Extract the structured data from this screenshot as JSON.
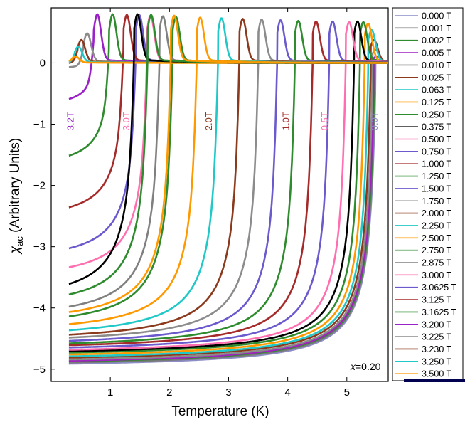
{
  "chart_data": {
    "type": "line",
    "xlabel": "Temperature (K)",
    "ylabel_main": "χ",
    "ylabel_sub": "ac",
    "ylabel_rest": " (Arbitrary Units)",
    "xlim": [
      0.0,
      5.7
    ],
    "ylim": [
      -5.2,
      0.9
    ],
    "x_ticks": [
      1,
      2,
      3,
      4,
      5
    ],
    "y_ticks": [
      0,
      -1,
      -2,
      -3,
      -4,
      -5
    ],
    "y_tick_labels": [
      "0",
      "−1",
      "−2",
      "−3",
      "−4",
      "−5"
    ],
    "x_tick_labels": [
      "1",
      "2",
      "3",
      "4",
      "5"
    ],
    "annotation_prefix": "x",
    "annotation_value": "=0.20",
    "legend_position": "right",
    "series": [
      {
        "name": "0.000 T",
        "color": "#8c8cc6",
        "tc": 5.48,
        "chi_min": -5.0,
        "peak": 0.0
      },
      {
        "name": "0.001 T",
        "color": "#7a7a7a",
        "tc": 5.47,
        "chi_min": -4.98,
        "peak": 0.0
      },
      {
        "name": "0.002 T",
        "color": "#2e8b2e",
        "tc": 5.46,
        "chi_min": -4.96,
        "peak": 0.05
      },
      {
        "name": "0.005 T",
        "color": "#a020c0",
        "tc": 5.45,
        "chi_min": -4.95,
        "peak": 0.1
      },
      {
        "name": "0.010 T",
        "color": "#8a8a8a",
        "tc": 5.43,
        "chi_min": -4.93,
        "peak": 0.2
      },
      {
        "name": "0.025 T",
        "color": "#8b3a1e",
        "tc": 5.4,
        "chi_min": -4.9,
        "peak": 0.35
      },
      {
        "name": "0.063 T",
        "color": "#20c8c8",
        "tc": 5.36,
        "chi_min": -4.88,
        "peak": 0.5
      },
      {
        "name": "0.125 T",
        "color": "#ff9900",
        "tc": 5.3,
        "chi_min": -4.85,
        "peak": 0.6
      },
      {
        "name": "0.250 T",
        "color": "#2e8b2e",
        "tc": 5.22,
        "chi_min": -4.82,
        "peak": 0.62
      },
      {
        "name": "0.375 T",
        "color": "#000000",
        "tc": 5.12,
        "chi_min": -4.8,
        "peak": 0.63
      },
      {
        "name": "0.500 T",
        "color": "#ff6fb0",
        "tc": 4.98,
        "chi_min": -4.78,
        "peak": 0.62
      },
      {
        "name": "0.750 T",
        "color": "#6a5acd",
        "tc": 4.7,
        "chi_min": -4.75,
        "peak": 0.63
      },
      {
        "name": "1.000 T",
        "color": "#a52a2a",
        "tc": 4.42,
        "chi_min": -4.72,
        "peak": 0.63
      },
      {
        "name": "1.250 T",
        "color": "#2e8b2e",
        "tc": 4.12,
        "chi_min": -4.7,
        "peak": 0.64
      },
      {
        "name": "1.500 T",
        "color": "#6a5acd",
        "tc": 3.82,
        "chi_min": -4.67,
        "peak": 0.65
      },
      {
        "name": "1.750 T",
        "color": "#8c8c8c",
        "tc": 3.5,
        "chi_min": -4.63,
        "peak": 0.66
      },
      {
        "name": "2.000 T",
        "color": "#8b3a1e",
        "tc": 3.18,
        "chi_min": -4.6,
        "peak": 0.67
      },
      {
        "name": "2.250 T",
        "color": "#20c8c8",
        "tc": 2.82,
        "chi_min": -4.55,
        "peak": 0.68
      },
      {
        "name": "2.500 T",
        "color": "#ff9900",
        "tc": 2.46,
        "chi_min": -4.48,
        "peak": 0.69
      },
      {
        "name": "2.750 T",
        "color": "#2e8b2e",
        "tc": 2.05,
        "chi_min": -4.4,
        "peak": 0.7
      },
      {
        "name": "2.875 T",
        "color": "#808080",
        "tc": 1.83,
        "chi_min": -4.27,
        "peak": 0.71
      },
      {
        "name": "3.000 T",
        "color": "#ff6fb0",
        "tc": 1.62,
        "chi_min": -3.62,
        "peak": 0.72
      },
      {
        "name": "3.0625 T",
        "color": "#6a5acd",
        "tc": 1.43,
        "chi_min": -3.33,
        "peak": 0.73
      },
      {
        "name": "3.125 T",
        "color": "#a52a2a",
        "tc": 1.22,
        "chi_min": -2.65,
        "peak": 0.73
      },
      {
        "name": "3.1625 T",
        "color": "#2e8b2e",
        "tc": 0.98,
        "chi_min": -1.77,
        "peak": 0.74
      },
      {
        "name": "3.200 T",
        "color": "#9a20c8",
        "tc": 0.72,
        "chi_min": -0.75,
        "peak": 0.74
      },
      {
        "name": "3.225 T",
        "color": "#8c8c8c",
        "tc": 0.55,
        "chi_min": -0.1,
        "peak": 0.45
      },
      {
        "name": "3.230 T",
        "color": "#8b3a1e",
        "tc": 0.45,
        "chi_min": 0.0,
        "peak": 0.35
      },
      {
        "name": "3.250 T",
        "color": "#20c8c8",
        "tc": 0.4,
        "chi_min": 0.0,
        "peak": 0.25
      },
      {
        "name": "3.500 T",
        "color": "#ff9900",
        "tc": 0.35,
        "chi_min": 0.0,
        "peak": 0.1
      }
    ],
    "extra_curves": [
      {
        "color": "#000000",
        "tc": 1.4,
        "chi_min": -3.98,
        "peak": 0.74
      },
      {
        "color": "#2e8b2e",
        "tc": 1.63,
        "chi_min": -4.1,
        "peak": 0.73
      },
      {
        "color": "#ff9900",
        "tc": 2.02,
        "chi_min": -4.33,
        "peak": 0.72
      }
    ],
    "curve_labels": [
      {
        "text": "3.2T",
        "x": 0.38,
        "y": -0.95,
        "color": "#9a20c8"
      },
      {
        "text": "3.0T",
        "x": 1.32,
        "y": -0.95,
        "color": "#ff6fb0"
      },
      {
        "text": "2.0T",
        "x": 2.72,
        "y": -0.95,
        "color": "#8b3a1e"
      },
      {
        "text": "1.0T",
        "x": 4.02,
        "y": -0.95,
        "color": "#a52a2a"
      },
      {
        "text": "0.5T",
        "x": 4.68,
        "y": -0.95,
        "color": "#ff6fb0"
      },
      {
        "text": "0.0T",
        "x": 5.52,
        "y": -0.95,
        "color": "#8c8cc6"
      }
    ]
  }
}
